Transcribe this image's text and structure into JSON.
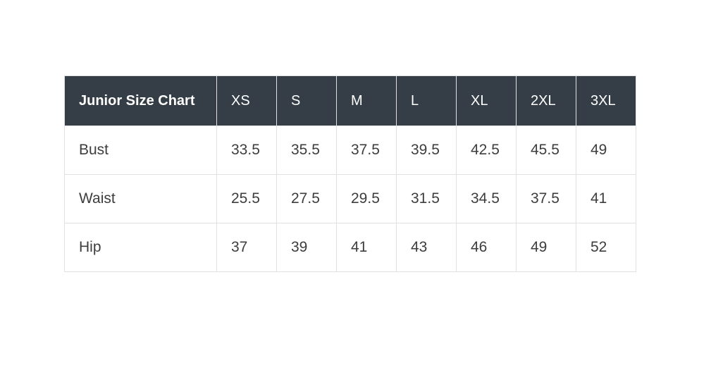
{
  "page": {
    "background_color": "#ffffff"
  },
  "table": {
    "header": [
      "Junior Size Chart",
      "XS",
      "S",
      "M",
      "L",
      "XL",
      "2XL",
      "3XL"
    ],
    "rows": [
      {
        "label": "Bust",
        "values": [
          "33.5",
          "35.5",
          "37.5",
          "39.5",
          "42.5",
          "45.5",
          "49"
        ]
      },
      {
        "label": "Waist",
        "values": [
          "25.5",
          "27.5",
          "29.5",
          "31.5",
          "34.5",
          "37.5",
          "41"
        ]
      },
      {
        "label": "Hip",
        "values": [
          "37",
          "39",
          "41",
          "43",
          "46",
          "49",
          "52"
        ]
      }
    ],
    "colors": {
      "header_background": "#353d46",
      "header_text": "#ffffff",
      "body_text": "#3d3d3d",
      "border": "#e1e1e1",
      "row_background": "#ffffff"
    }
  },
  "chart_data": {
    "type": "table",
    "title": "Junior Size Chart",
    "columns": [
      "XS",
      "S",
      "M",
      "L",
      "XL",
      "2XL",
      "3XL"
    ],
    "measurements": [
      {
        "name": "Bust",
        "values": [
          33.5,
          35.5,
          37.5,
          39.5,
          42.5,
          45.5,
          49
        ]
      },
      {
        "name": "Waist",
        "values": [
          25.5,
          27.5,
          29.5,
          31.5,
          34.5,
          37.5,
          41
        ]
      },
      {
        "name": "Hip",
        "values": [
          37,
          39,
          41,
          43,
          46,
          49,
          52
        ]
      }
    ]
  }
}
